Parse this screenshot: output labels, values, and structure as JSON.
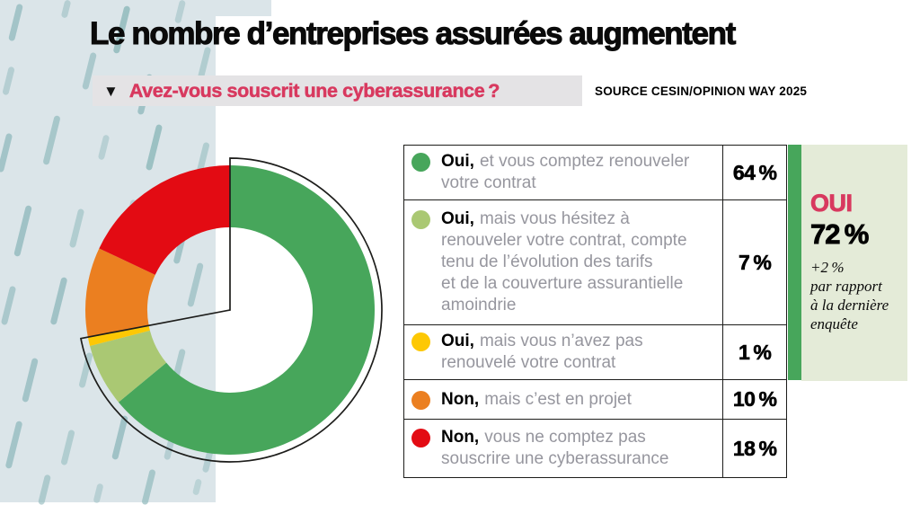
{
  "header": {
    "title": "Le nombre d’entreprises assurées augmentent",
    "question_marker": "▼",
    "question": "Avez-vous souscrit une cyberassurance ?",
    "source": "SOURCE CESIN/OPINION WAY 2025"
  },
  "chart_data": {
    "type": "pie",
    "subtype": "donut",
    "title": "Avez-vous souscrit une cyberassurance ?",
    "start_angle_deg": 0,
    "direction": "clockwise",
    "legend_position": "right",
    "series": [
      {
        "label_bold": "Oui,",
        "label_rest": "et vous comptez renouveler\nvotre contrat",
        "value": 64,
        "percent_label": "64 %",
        "color": "#47a65b"
      },
      {
        "label_bold": "Oui,",
        "label_rest": "mais vous hésitez à\nrenouveler votre contrat, compte\ntenu de l’évolution des tarifs\net de la couverture assurantielle\namoindrie",
        "value": 7,
        "percent_label": "7 %",
        "color": "#aac873"
      },
      {
        "label_bold": "Oui,",
        "label_rest": "mais vous n’avez pas\nrenouvelé votre contrat",
        "value": 1,
        "percent_label": "1 %",
        "color": "#fdc804"
      },
      {
        "label_bold": "Non,",
        "label_rest": "mais c’est en projet",
        "value": 10,
        "percent_label": "10 %",
        "color": "#eb7f20"
      },
      {
        "label_bold": "Non,",
        "label_rest": "vous ne comptez pas\nsouscrire une cyberassurance",
        "value": 18,
        "percent_label": "18 %",
        "color": "#e30b13"
      }
    ],
    "highlight_group": {
      "label": "OUI",
      "share_pct": 72,
      "value_label": "72 %",
      "note": "+2 %\npar rapport\nà la dernière\nenquête"
    }
  },
  "colors": {
    "accent_pink": "#d8395f",
    "green": "#47a65b",
    "sage_bg": "#e4ebd8",
    "pattern_bg": "#dbe5e9",
    "pattern_dash": "#95bcbf",
    "graybar_bg": "#e4e3e5",
    "gray_text": "#96969e",
    "line": "#1d1d1b"
  }
}
